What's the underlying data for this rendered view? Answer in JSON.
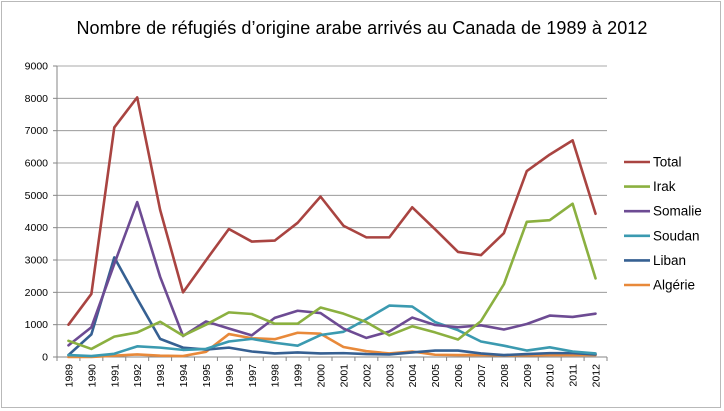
{
  "chart_data": {
    "type": "line",
    "title": "Nombre de réfugiés d’origine arabe arrivés au Canada de 1989 à 2012",
    "xlabel": "",
    "ylabel": "",
    "x": [
      "1989",
      "1990",
      "1991",
      "1992",
      "1993",
      "1994",
      "1995",
      "1996",
      "1997",
      "1998",
      "1999",
      "2000",
      "2001",
      "2002",
      "2003",
      "2004",
      "2005",
      "2006",
      "2007",
      "2008",
      "2009",
      "2010",
      "2011",
      "2012"
    ],
    "ylim": [
      0,
      9000
    ],
    "yticks": [
      0,
      1000,
      2000,
      3000,
      4000,
      5000,
      6000,
      7000,
      8000,
      9000
    ],
    "grid": true,
    "legend_position": "right",
    "series": [
      {
        "name": "Total",
        "color": "#a94441",
        "values": [
          1000,
          1950,
          7100,
          8030,
          4550,
          2000,
          2990,
          3960,
          3570,
          3600,
          4150,
          4960,
          4060,
          3700,
          3700,
          4630,
          3950,
          3250,
          3150,
          3830,
          5750,
          6260,
          6700,
          4430
        ]
      },
      {
        "name": "Irak",
        "color": "#8bb040",
        "values": [
          500,
          250,
          630,
          760,
          1090,
          660,
          1000,
          1380,
          1330,
          1030,
          1030,
          1530,
          1340,
          1080,
          670,
          950,
          760,
          540,
          1110,
          2250,
          4180,
          4230,
          4740,
          2430
        ]
      },
      {
        "name": "Somalie",
        "color": "#6d4b93",
        "values": [
          360,
          920,
          2880,
          4790,
          2480,
          650,
          1100,
          880,
          670,
          1210,
          1430,
          1360,
          880,
          590,
          790,
          1220,
          990,
          920,
          980,
          850,
          1020,
          1280,
          1240,
          1340
        ]
      },
      {
        "name": "Soudan",
        "color": "#3b9ab0",
        "values": [
          60,
          30,
          100,
          330,
          290,
          220,
          250,
          480,
          560,
          440,
          350,
          680,
          780,
          1170,
          1590,
          1560,
          1080,
          830,
          480,
          350,
          200,
          300,
          170,
          110
        ]
      },
      {
        "name": "Liban",
        "color": "#366092",
        "values": [
          60,
          700,
          3080,
          1800,
          560,
          290,
          230,
          290,
          170,
          110,
          140,
          110,
          120,
          90,
          80,
          140,
          200,
          200,
          110,
          60,
          90,
          120,
          120,
          80
        ]
      },
      {
        "name": "Algérie",
        "color": "#e8893a",
        "values": [
          0,
          0,
          40,
          80,
          40,
          30,
          160,
          710,
          580,
          550,
          750,
          720,
          310,
          180,
          110,
          170,
          70,
          60,
          60,
          50,
          50,
          60,
          60,
          60
        ]
      }
    ]
  }
}
